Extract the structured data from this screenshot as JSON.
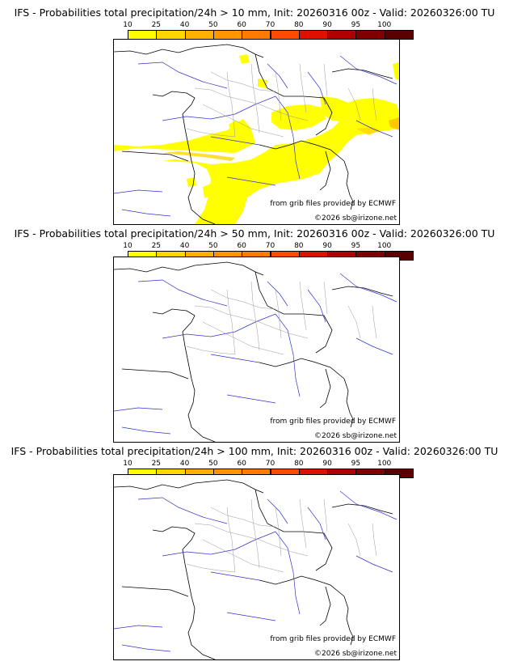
{
  "legend": {
    "ticks": [
      "10",
      "25",
      "40",
      "50",
      "60",
      "70",
      "80",
      "90",
      "95",
      "100"
    ],
    "colors": [
      "#ffff00",
      "#ffd700",
      "#ffb000",
      "#ff9500",
      "#ff7a00",
      "#ff4a00",
      "#e01000",
      "#b00000",
      "#800000",
      "#5a0000"
    ]
  },
  "panels": [
    {
      "title": "IFS - Probabilities total precipitation/24h > 10 mm, Init: 20260316 00z - Valid: 20260326:00 TU",
      "threshold_mm": 10,
      "credit_grib": "from grib files provided by ECMWF",
      "credit_site": "©2026 sb@irizone.net"
    },
    {
      "title": "IFS - Probabilities total precipitation/24h > 50 mm, Init: 20260316 00z - Valid: 20260326:00 TU",
      "threshold_mm": 50,
      "credit_grib": "from grib files provided by ECMWF",
      "credit_site": "©2026 sb@irizone.net"
    },
    {
      "title": "IFS - Probabilities total precipitation/24h > 100 mm, Init: 20260316 00z - Valid: 20260326:00 TU",
      "threshold_mm": 100,
      "credit_grib": "from grib files provided by ECMWF",
      "credit_site": "©2026 sb@irizone.net"
    }
  ]
}
